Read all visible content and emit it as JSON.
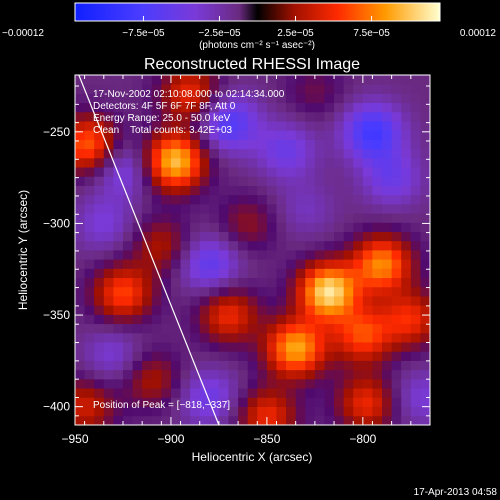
{
  "chart_data": {
    "type": "heatmap",
    "title": "Reconstructed RHESSI Image",
    "xlabel": "Heliocentric X (arcsec)",
    "ylabel": "Heliocentric Y (arcsec)",
    "xlim": [
      -950,
      -765
    ],
    "ylim": [
      -410,
      -219
    ],
    "x_ticks": [
      -950,
      -900,
      -850,
      -800
    ],
    "y_ticks": [
      -250,
      -300,
      -350,
      -400
    ],
    "x_tick_labels": [
      "−950",
      "−900",
      "−850",
      "−800"
    ],
    "y_tick_labels": [
      "−250",
      "−300",
      "−350",
      "−400"
    ],
    "colorbar": {
      "min": -0.00012,
      "max": 0.00012,
      "ticks": [
        -0.00012,
        -7.5e-05,
        -2.5e-05,
        2.5e-05,
        7.5e-05,
        0.00012
      ],
      "tick_labels": [
        "−0.00012",
        "−7.5e−05",
        "−2.5e−05",
        "2.5e−05",
        "7.5e−05",
        "0.00012"
      ],
      "unit_label": "(photons cm⁻² s⁻¹ asec⁻²)"
    },
    "annotations": [
      "17-Nov-2002 02:10:08.000 to 02:14:34.000",
      "Detectors: 4F 5F 6F 7F 8F, Att 0",
      "Energy Range: 25.0 - 50.0 keV",
      "Clean    Total counts: 3.42E+03"
    ],
    "peak_label": "Position of Peak = [−818,−337]",
    "peak": [
      -818,
      -337
    ],
    "peaks": [
      {
        "x": -898,
        "y": -266,
        "v": 0.00011
      },
      {
        "x": -943,
        "y": -257,
        "v": 8e-05
      },
      {
        "x": -890,
        "y": -229,
        "v": 6e-05
      },
      {
        "x": -905,
        "y": -312,
        "v": 4e-05
      },
      {
        "x": -818,
        "y": -337,
        "v": 0.00012
      },
      {
        "x": -835,
        "y": -368,
        "v": 0.0001
      },
      {
        "x": -790,
        "y": -322,
        "v": 9e-05
      },
      {
        "x": -800,
        "y": -361,
        "v": 7e-05
      },
      {
        "x": -775,
        "y": -352,
        "v": 6e-05
      },
      {
        "x": -925,
        "y": -338,
        "v": 7e-05
      },
      {
        "x": -870,
        "y": -350,
        "v": 6e-05
      },
      {
        "x": -850,
        "y": -405,
        "v": 6e-05
      },
      {
        "x": -798,
        "y": -398,
        "v": 6e-05
      },
      {
        "x": -945,
        "y": -400,
        "v": 5e-05
      },
      {
        "x": -860,
        "y": -300,
        "v": 3e-05
      },
      {
        "x": -825,
        "y": -228,
        "v": 2e-05
      },
      {
        "x": -910,
        "y": -385,
        "v": 4e-05
      },
      {
        "x": -870,
        "y": -245,
        "v": -6e-05
      },
      {
        "x": -925,
        "y": -270,
        "v": -4e-05
      },
      {
        "x": -795,
        "y": -250,
        "v": -7e-05
      },
      {
        "x": -785,
        "y": -275,
        "v": -4e-05
      },
      {
        "x": -935,
        "y": -300,
        "v": -3e-05
      },
      {
        "x": -880,
        "y": -322,
        "v": -5e-05
      },
      {
        "x": -840,
        "y": -260,
        "v": -4e-05
      },
      {
        "x": -930,
        "y": -372,
        "v": -3e-05
      },
      {
        "x": -880,
        "y": -395,
        "v": -4e-05
      },
      {
        "x": -770,
        "y": -395,
        "v": -3e-05
      },
      {
        "x": -830,
        "y": -292,
        "v": -2e-05
      }
    ],
    "limb": {
      "points": [
        [
          -948,
          -219
        ],
        [
          -875,
          -410
        ]
      ]
    }
  },
  "footer": {
    "timestamp": "17-Apr-2013 04:58"
  },
  "colors": {
    "background": "#000000",
    "text": "#ffffff"
  }
}
